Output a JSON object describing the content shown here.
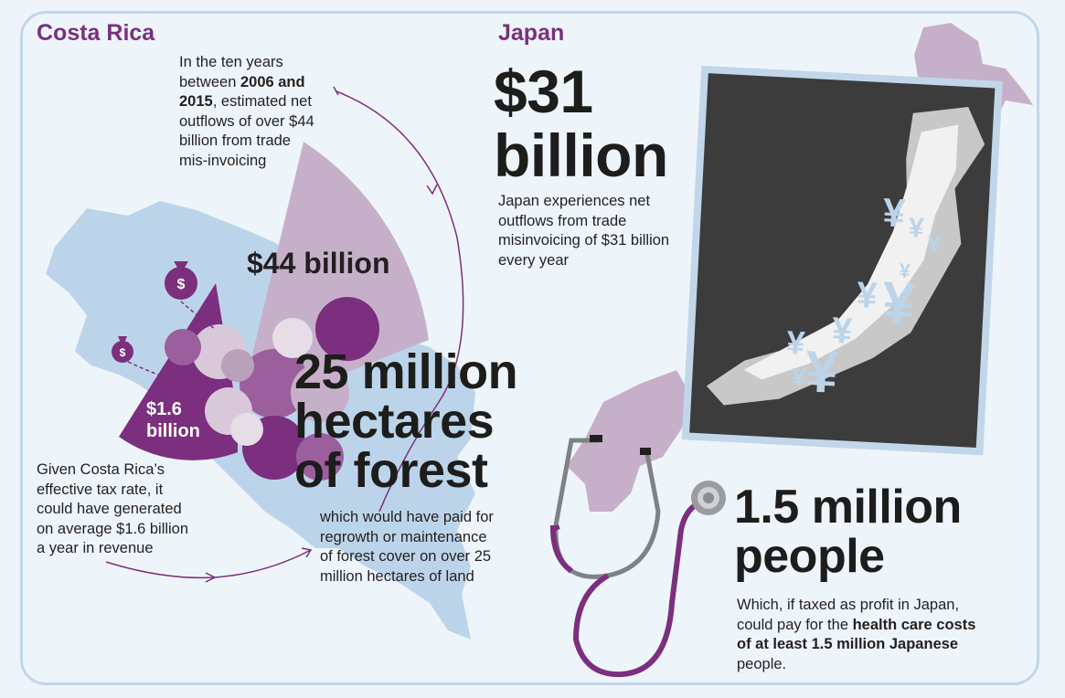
{
  "costa_rica": {
    "title": "Costa Rica",
    "intro_line1": "In the ten years",
    "intro_line2_pre": "between ",
    "intro_line2_bold": "2006 and",
    "intro_line3_bold": "2015",
    "intro_line3_post": ", estimated net",
    "intro_line4": "outflows of over $44",
    "intro_line5": "billion from trade",
    "intro_line6": "mis-invoicing",
    "outflow_label": "$44 billion",
    "revenue_label_1": "$1.6",
    "revenue_label_2": "billion",
    "tax_line1": "Given Costa Rica’s",
    "tax_line2": "effective tax rate, it",
    "tax_line3": "could have generated",
    "tax_line4": "on average $1.6 billion",
    "tax_line5": "a year in revenue",
    "forest_line1": "25 million",
    "forest_line2": "hectares",
    "forest_line3": "of forest",
    "forest_desc1": "which would have paid for",
    "forest_desc2": "regrowth or maintenance",
    "forest_desc3": "of forest cover on over 25",
    "forest_desc4": "million hectares of land"
  },
  "japan": {
    "title": "Japan",
    "amount_line1": "$31",
    "amount_line2": "billion",
    "desc1": "Japan experiences net",
    "desc2": "outflows from trade",
    "desc3": "misinvoicing of $31 billion",
    "desc4": "every year",
    "people_line1": "1.5 million",
    "people_line2": "people",
    "health1": "Which, if taxed as profit in Japan,",
    "health2_pre": "could pay for the ",
    "health2_bold": "health care costs",
    "health3_bold": "of at least 1.5 million Japanese",
    "health4": "people."
  },
  "icons": {
    "money_bag": "money-bag-icon",
    "yen": "yen-symbol",
    "stethoscope": "stethoscope-illustration"
  },
  "colors": {
    "purple": "#7b2f7e",
    "light_purple": "#c6b0c9",
    "light_blue": "#bcd4ea",
    "panel_border": "#c2d6ea",
    "background": "#eef5fa"
  }
}
